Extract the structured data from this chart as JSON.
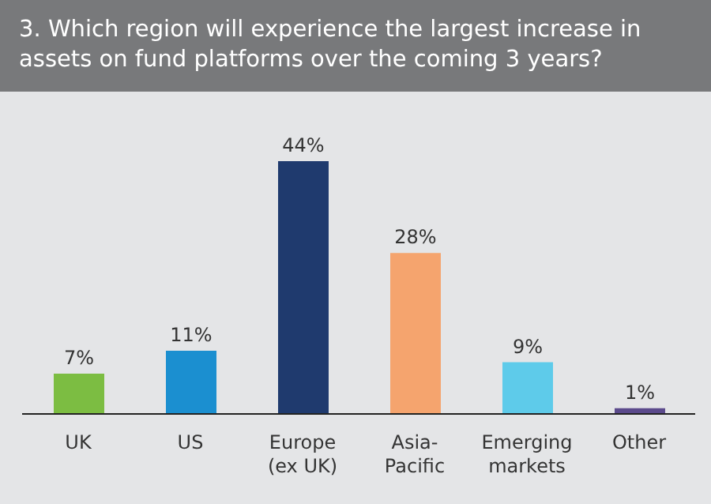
{
  "chart_data": {
    "type": "bar",
    "title": "3. Which region will experience the largest increase in assets on fund platforms over the coming 3 years?",
    "categories": [
      "UK",
      "US",
      "Europe\n(ex UK)",
      "Asia-\nPacific",
      "Emerging\nmarkets",
      "Other"
    ],
    "values": [
      7,
      11,
      44,
      28,
      9,
      1
    ],
    "colors": [
      "#7cbd42",
      "#1b8fd0",
      "#1f3a6e",
      "#f5a46e",
      "#5ecbea",
      "#5b4a8c"
    ],
    "value_labels": [
      "7%",
      "11%",
      "44%",
      "28%",
      "9%",
      "1%"
    ],
    "grid": false,
    "legend": false
  }
}
